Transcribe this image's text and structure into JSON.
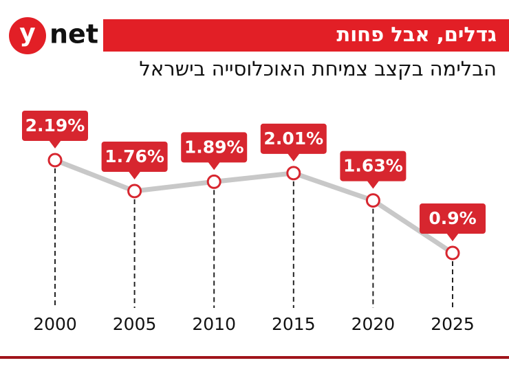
{
  "brand": [
    "y",
    "net"
  ],
  "chart_data": {
    "type": "line",
    "title": "גדלים, אבל פחות",
    "subtitle": "הבלימה בקצב צמיחת האוכלוסייה בישראל",
    "categories": [
      "2000",
      "2005",
      "2010",
      "2015",
      "2020",
      "2025"
    ],
    "values": [
      2.19,
      1.76,
      1.89,
      2.01,
      1.63,
      0.9
    ],
    "value_labels": [
      "2.19%",
      "1.76%",
      "1.89%",
      "2.01%",
      "1.63%",
      "0.9%"
    ],
    "color": "#c8c8c8",
    "marker_color": "#d7262f"
  }
}
